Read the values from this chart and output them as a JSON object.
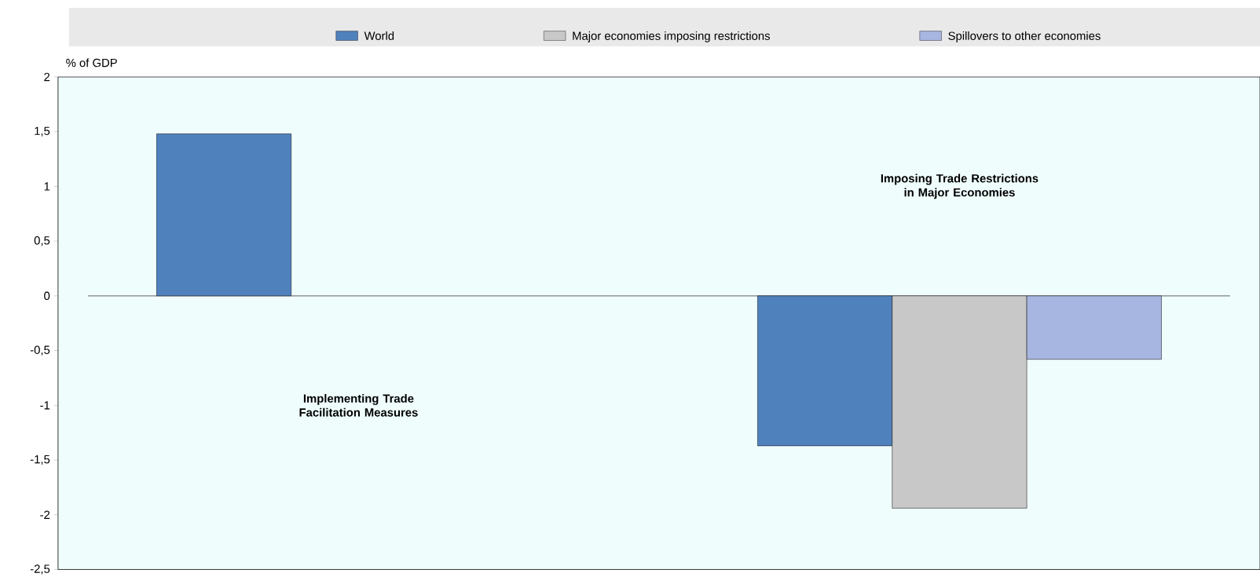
{
  "chart_data": {
    "type": "bar",
    "ylabel": "% of GDP",
    "categories": [
      "Implementing Trade Facilitation Measures",
      "Imposing Trade Restrictions in Major Economies"
    ],
    "series": [
      {
        "name": "World",
        "color": "#4f81bd",
        "values": [
          1.48,
          -1.37
        ]
      },
      {
        "name": "Major economies imposing restrictions",
        "color": "#c8c8c8",
        "values": [
          null,
          -1.94
        ]
      },
      {
        "name": "Spillovers to other economies",
        "color": "#a6b6e0",
        "values": [
          null,
          -0.58
        ]
      }
    ],
    "ylim": [
      -2.5,
      2
    ],
    "yticks": [
      {
        "value": -2.5,
        "label": "-2,5"
      },
      -2,
      {
        "value": -1.5,
        "label": "-1,5"
      },
      -1,
      {
        "value": -0.5,
        "label": "-0,5"
      },
      0,
      {
        "value": 0.5,
        "label": "0,5"
      },
      1,
      {
        "value": 1.5,
        "label": "1,5"
      },
      2
    ],
    "ref_lines": [
      {
        "axis": "y",
        "value": 0,
        "color": "#7f7f7f"
      }
    ],
    "legend": "top"
  }
}
